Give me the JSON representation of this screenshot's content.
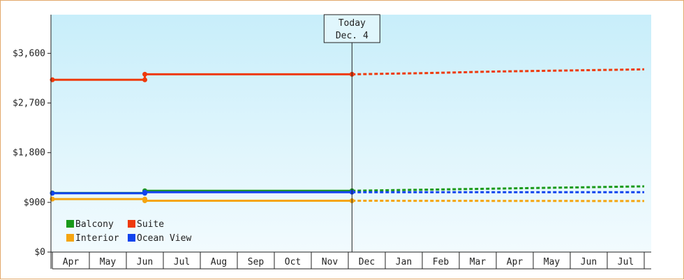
{
  "chart_data": {
    "type": "line",
    "x_months": [
      "Apr",
      "May",
      "Jun",
      "Jul",
      "Aug",
      "Sep",
      "Oct",
      "Nov",
      "Dec",
      "Jan",
      "Feb",
      "Mar",
      "Apr",
      "May",
      "Jun",
      "Jul"
    ],
    "ylim": [
      0,
      4300
    ],
    "y_ticks": [
      0,
      900,
      1800,
      2700,
      3600
    ],
    "y_tick_labels": [
      "$0",
      "$900",
      "$1,800",
      "$2,700",
      "$3,600"
    ],
    "today_label": "Today",
    "today_date": "Dec. 4",
    "today_x": 8.1,
    "legend": [
      {
        "name": "Balcony",
        "color": "#1a9a1a"
      },
      {
        "name": "Suite",
        "color": "#ee3a0c"
      },
      {
        "name": "Interior",
        "color": "#f5a511"
      },
      {
        "name": "Ocean View",
        "color": "#1144ee"
      }
    ],
    "series": [
      {
        "name": "Suite",
        "color": "#ee3a0c",
        "actual": [
          [
            0,
            3120
          ],
          [
            2.5,
            3120
          ],
          [
            2.5,
            3220
          ],
          [
            8.1,
            3220
          ]
        ],
        "forecast": [
          [
            8.1,
            3220
          ],
          [
            10,
            3240
          ],
          [
            12,
            3270
          ],
          [
            14,
            3290
          ],
          [
            16,
            3310
          ]
        ]
      },
      {
        "name": "Balcony",
        "color": "#1a9a1a",
        "actual": [
          [
            0,
            1070
          ],
          [
            2.5,
            1070
          ],
          [
            2.5,
            1110
          ],
          [
            8.1,
            1110
          ]
        ],
        "forecast": [
          [
            8.1,
            1110
          ],
          [
            10,
            1130
          ],
          [
            12,
            1150
          ],
          [
            14,
            1170
          ],
          [
            16,
            1190
          ]
        ]
      },
      {
        "name": "Ocean View",
        "color": "#1144ee",
        "actual": [
          [
            0,
            1065
          ],
          [
            2.5,
            1065
          ],
          [
            2.5,
            1085
          ],
          [
            8.1,
            1085
          ]
        ],
        "forecast": [
          [
            8.1,
            1085
          ],
          [
            16,
            1085
          ]
        ]
      },
      {
        "name": "Interior",
        "color": "#f5a511",
        "actual": [
          [
            0,
            960
          ],
          [
            2.5,
            960
          ],
          [
            2.5,
            930
          ],
          [
            8.1,
            930
          ]
        ],
        "forecast": [
          [
            8.1,
            930
          ],
          [
            16,
            925
          ]
        ]
      }
    ]
  }
}
